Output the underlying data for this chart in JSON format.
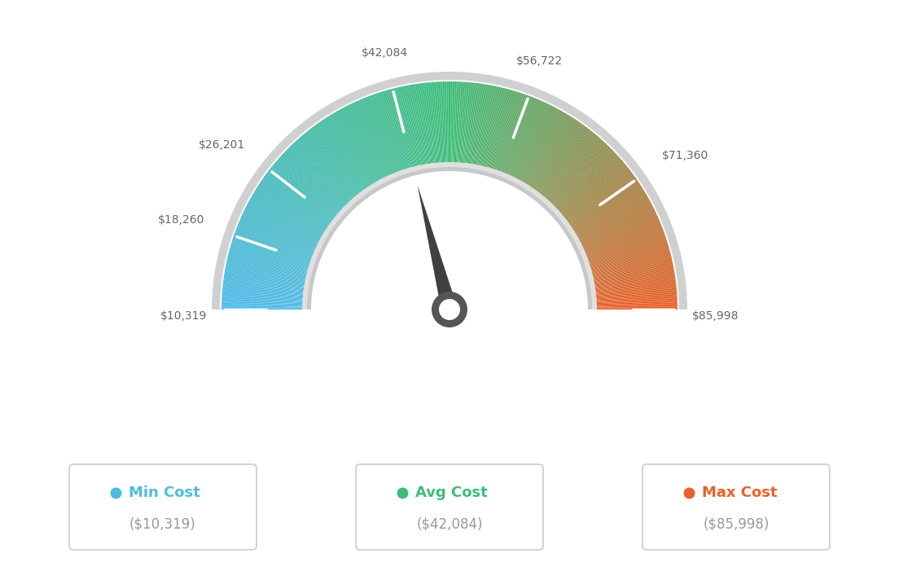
{
  "min_value": 10319,
  "max_value": 85998,
  "avg_value": 42084,
  "tick_labels": [
    "$10,319",
    "$18,260",
    "$26,201",
    "$42,084",
    "$56,722",
    "$71,360",
    "$85,998"
  ],
  "tick_values": [
    10319,
    18260,
    26201,
    42084,
    56722,
    71360,
    85998
  ],
  "legend_min_label": "Min Cost",
  "legend_avg_label": "Avg Cost",
  "legend_max_label": "Max Cost",
  "legend_min_value": "($10,319)",
  "legend_avg_value": "($42,084)",
  "legend_max_value": "($85,998)",
  "color_min_r": 78,
  "color_min_g": 185,
  "color_min_b": 232,
  "color_mid_r": 60,
  "color_mid_g": 188,
  "color_mid_b": 120,
  "color_max_r": 232,
  "color_max_g": 95,
  "color_max_b": 38,
  "legend_color_min": "#4BBDE0",
  "legend_color_avg": "#3DBD7D",
  "legend_color_max": "#E8622A",
  "background_color": "#ffffff",
  "needle_color": "#404040",
  "border_color": "#cccccc",
  "inner_border_color": "#aaaaaa",
  "label_color": "#666666"
}
